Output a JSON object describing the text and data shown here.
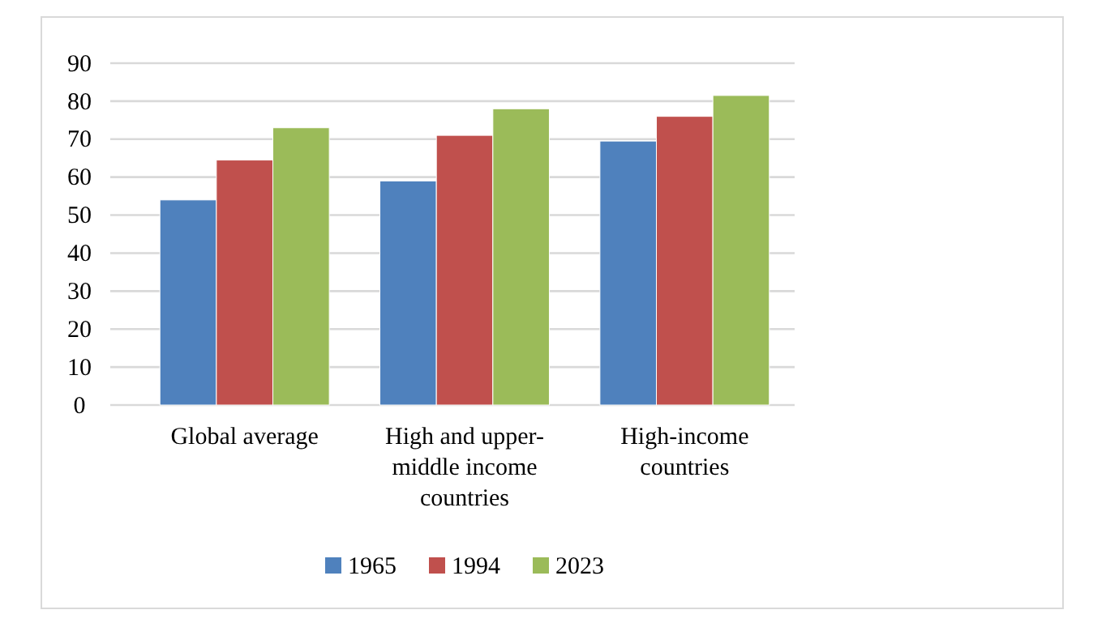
{
  "chart_data": {
    "type": "bar",
    "categories": [
      "Global average",
      "High and upper-middle income countries",
      "High-income countries"
    ],
    "series": [
      {
        "name": "1965",
        "color": "#4f81bd",
        "values": [
          54,
          59,
          69.5
        ]
      },
      {
        "name": "1994",
        "color": "#c0504d",
        "values": [
          64.5,
          71,
          76
        ]
      },
      {
        "name": "2023",
        "color": "#9bbb59",
        "values": [
          73,
          78,
          81.5
        ]
      }
    ],
    "ylim": [
      0,
      90
    ],
    "yticks": [
      0,
      10,
      20,
      30,
      40,
      50,
      60,
      70,
      80,
      90
    ],
    "grid": "y",
    "legend": "bottom"
  }
}
